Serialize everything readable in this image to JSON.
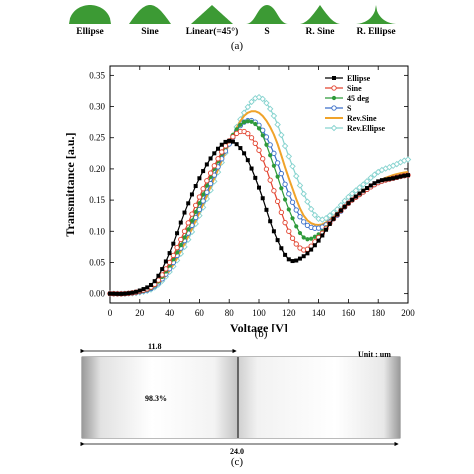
{
  "panel_a": {
    "label": "(a)",
    "shapes": [
      {
        "label": "Ellipse"
      },
      {
        "label": "Sine"
      },
      {
        "label": "Linear(=45°)"
      },
      {
        "label": "S"
      },
      {
        "label": "R. Sine"
      },
      {
        "label": "R. Ellipse"
      }
    ],
    "color": "#3c9a34"
  },
  "chart_data": [
    {
      "type": "line",
      "xlabel": "Voltage [V]",
      "ylabel": "Transmittance [a.u.]",
      "xlim": [
        0,
        200
      ],
      "ylim": [
        -0.015,
        0.365
      ],
      "xticks": [
        0,
        20,
        40,
        60,
        80,
        100,
        120,
        140,
        160,
        180,
        200
      ],
      "yticks": [
        0.0,
        0.05,
        0.1,
        0.15,
        0.2,
        0.25,
        0.3,
        0.35
      ],
      "ytick_labels": [
        "0.00",
        "0.05",
        "0.10",
        "0.15",
        "0.20",
        "0.25",
        "0.30",
        "0.35"
      ],
      "legend_position": "top-right",
      "grid": false,
      "panel_label": "(b)",
      "x": [
        0,
        10,
        20,
        30,
        40,
        50,
        60,
        70,
        80,
        90,
        100,
        110,
        120,
        130,
        140,
        150,
        160,
        170,
        180,
        190,
        200
      ],
      "series": [
        {
          "name": "Ellipse",
          "color": "#000000",
          "marker": "filled-square",
          "values": [
            0.0,
            0.0,
            0.005,
            0.02,
            0.065,
            0.13,
            0.185,
            0.225,
            0.245,
            0.225,
            0.17,
            0.1,
            0.055,
            0.06,
            0.085,
            0.12,
            0.145,
            0.165,
            0.18,
            0.185,
            0.19
          ]
        },
        {
          "name": "Sine",
          "color": "#e2432f",
          "marker": "open-circle",
          "values": [
            0.0,
            0.0,
            0.004,
            0.015,
            0.05,
            0.1,
            0.155,
            0.205,
            0.245,
            0.26,
            0.23,
            0.165,
            0.1,
            0.07,
            0.09,
            0.12,
            0.145,
            0.163,
            0.178,
            0.185,
            0.19
          ]
        },
        {
          "name": "45 deg",
          "color": "#2e9a3a",
          "marker": "filled-circle",
          "values": [
            0.0,
            0.0,
            0.003,
            0.013,
            0.045,
            0.09,
            0.145,
            0.2,
            0.245,
            0.275,
            0.265,
            0.205,
            0.135,
            0.09,
            0.095,
            0.12,
            0.145,
            0.165,
            0.178,
            0.185,
            0.19
          ]
        },
        {
          "name": "S",
          "color": "#3a6fc9",
          "marker": "open-circle",
          "values": [
            0.0,
            0.0,
            0.003,
            0.012,
            0.04,
            0.085,
            0.135,
            0.19,
            0.24,
            0.275,
            0.27,
            0.225,
            0.16,
            0.115,
            0.105,
            0.12,
            0.145,
            0.163,
            0.178,
            0.185,
            0.19
          ]
        },
        {
          "name": "Rev.Sine",
          "color": "#f0a32a",
          "marker": "none",
          "values": [
            0.0,
            0.0,
            0.003,
            0.011,
            0.037,
            0.08,
            0.13,
            0.185,
            0.24,
            0.285,
            0.29,
            0.255,
            0.185,
            0.125,
            0.11,
            0.123,
            0.145,
            0.163,
            0.18,
            0.19,
            0.195
          ]
        },
        {
          "name": "Rev.Ellipse",
          "color": "#86d3cf",
          "marker": "open-diamond",
          "values": [
            0.0,
            0.0,
            0.002,
            0.01,
            0.035,
            0.075,
            0.125,
            0.18,
            0.24,
            0.29,
            0.315,
            0.285,
            0.22,
            0.16,
            0.12,
            0.13,
            0.155,
            0.175,
            0.195,
            0.205,
            0.215
          ]
        }
      ]
    }
  ],
  "panel_c": {
    "unit_label": "Unit : um",
    "top_dimension": "11.8",
    "bottom_dimension": "24.0",
    "percent": "98.3%",
    "label": "(c)"
  }
}
